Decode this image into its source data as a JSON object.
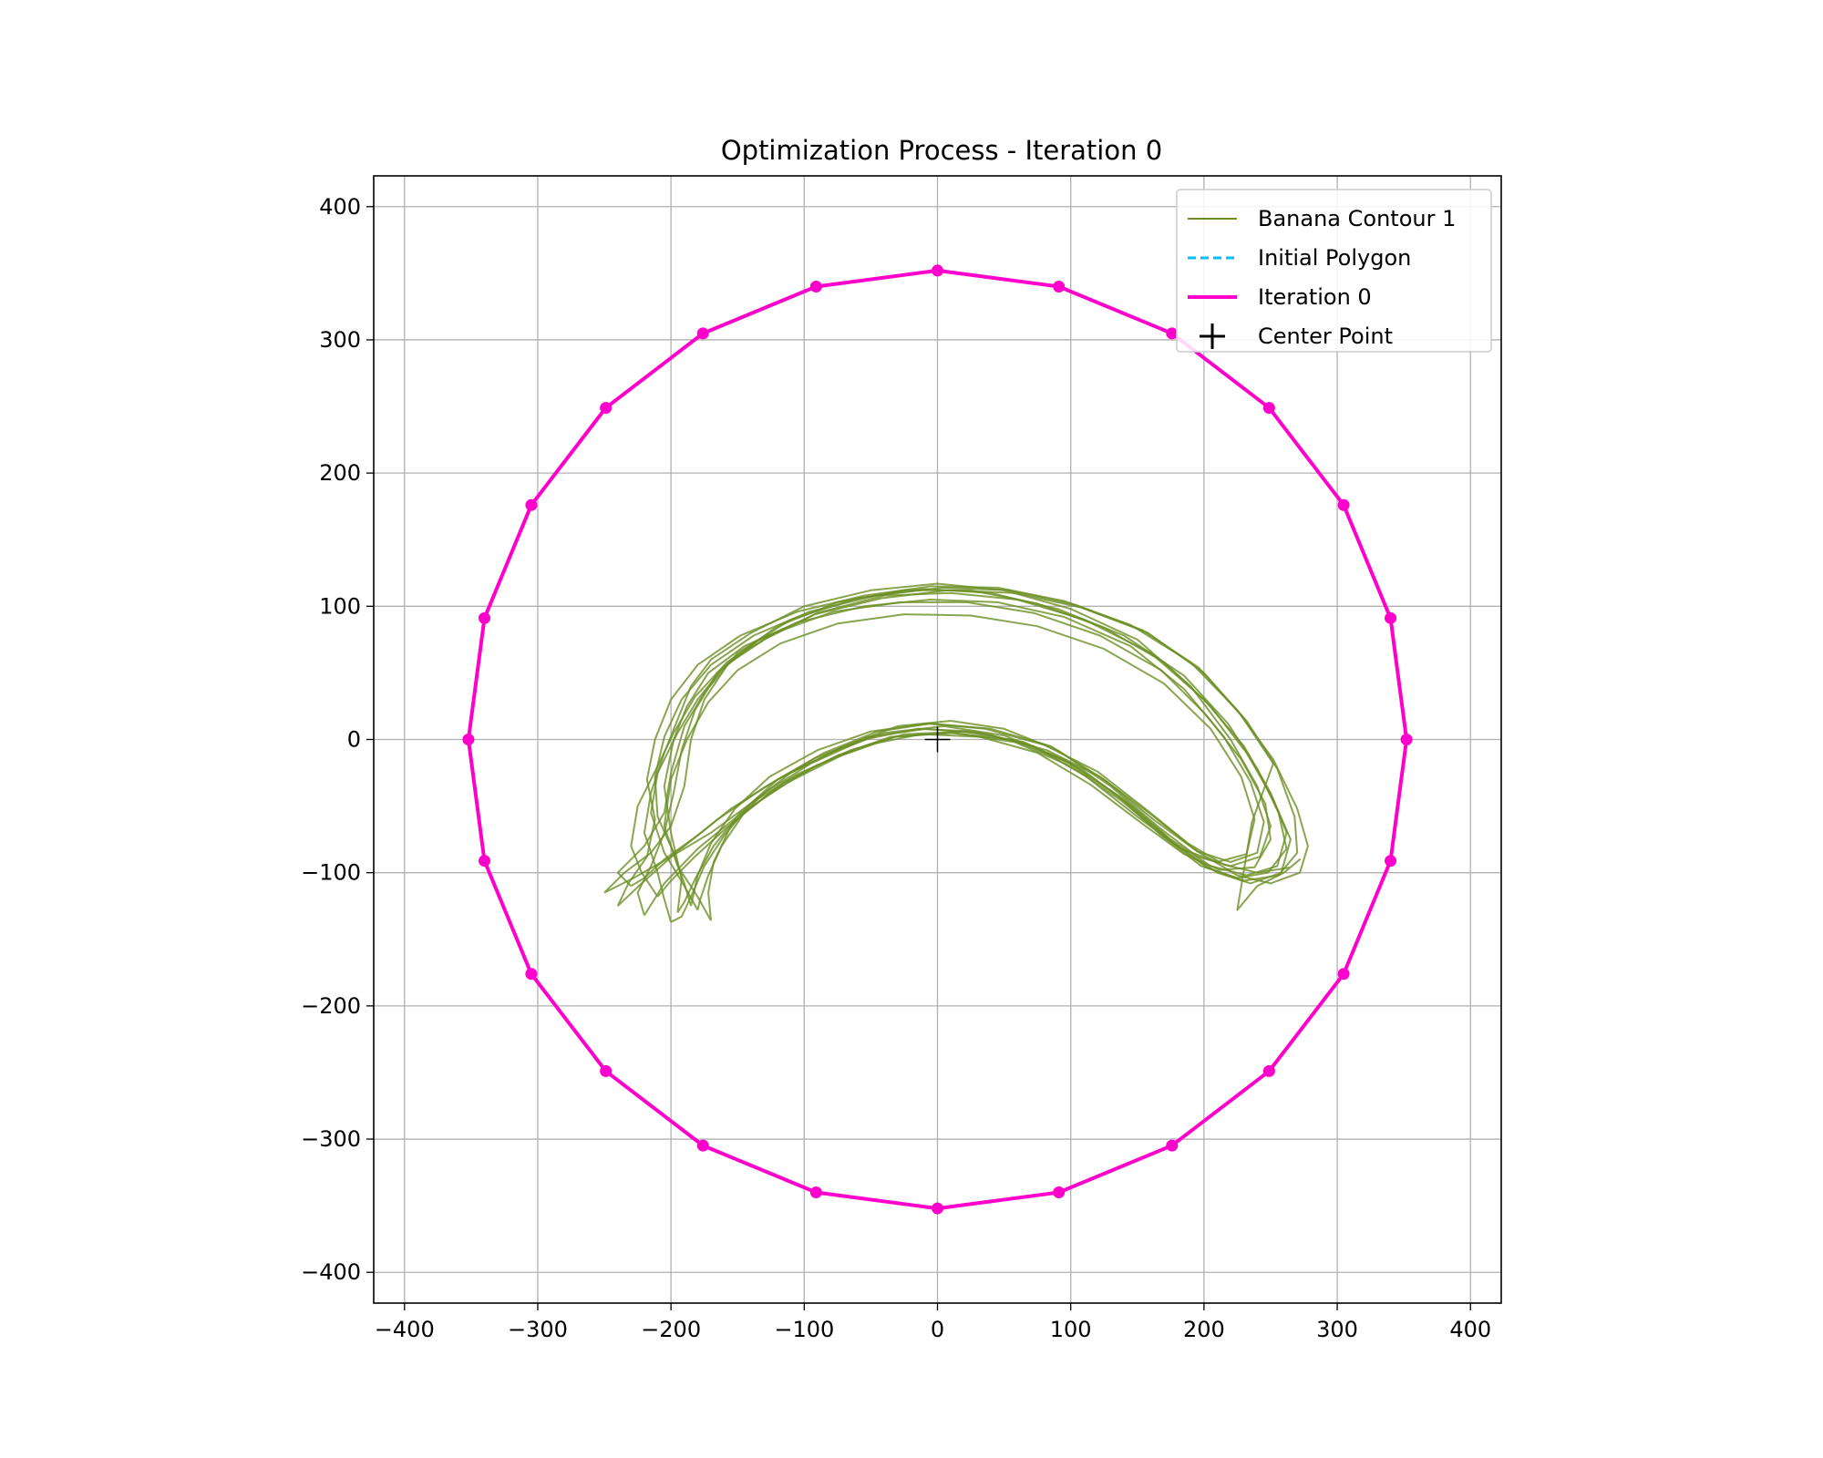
{
  "chart_data": {
    "type": "line",
    "title": "Optimization Process - Iteration 0",
    "xlabel": "",
    "ylabel": "",
    "xlim": [
      -400,
      400
    ],
    "ylim": [
      -400,
      400
    ],
    "xticks": [
      -400,
      -300,
      -200,
      -100,
      0,
      100,
      200,
      300,
      400
    ],
    "yticks": [
      -400,
      -300,
      -200,
      -100,
      0,
      100,
      200,
      300,
      400
    ],
    "x_tick_labels": [
      "−400",
      "−300",
      "−200",
      "−100",
      "0",
      "100",
      "200",
      "300",
      "400"
    ],
    "y_tick_labels": [
      "−400",
      "−300",
      "−200",
      "−100",
      "0",
      "100",
      "200",
      "300",
      "400"
    ],
    "grid": true,
    "legend_position": "top-right",
    "center_point": [
      0,
      0
    ],
    "polygon": {
      "vertex_count": 24,
      "radius": 352
    },
    "colors": {
      "banana": "#6b8e23",
      "initial": "#00bfff",
      "iteration": "#ff00cc",
      "center": "#000000",
      "grid": "#b0b0b0"
    },
    "series": [
      {
        "name": "Banana Contour 1",
        "style": "solid-thin"
      },
      {
        "name": "Initial Polygon",
        "style": "dashed"
      },
      {
        "name": "Iteration 0",
        "style": "solid-thick"
      },
      {
        "name": "Center Point",
        "style": "plus-marker"
      }
    ],
    "banana_contours": [
      [
        [
          -200,
          -137
        ],
        [
          -205,
          -120
        ],
        [
          -210,
          -100
        ],
        [
          -220,
          -70
        ],
        [
          -215,
          -40
        ],
        [
          -205,
          -10
        ],
        [
          -195,
          15
        ],
        [
          -185,
          40
        ],
        [
          -170,
          60
        ],
        [
          -140,
          80
        ],
        [
          -100,
          100
        ],
        [
          -50,
          112
        ],
        [
          0,
          117
        ],
        [
          50,
          112
        ],
        [
          100,
          98
        ],
        [
          150,
          75
        ],
        [
          190,
          40
        ],
        [
          220,
          0
        ],
        [
          240,
          -35
        ],
        [
          250,
          -65
        ],
        [
          242,
          -88
        ],
        [
          220,
          -95
        ],
        [
          195,
          -88
        ],
        [
          165,
          -65
        ],
        [
          130,
          -35
        ],
        [
          90,
          -8
        ],
        [
          50,
          8
        ],
        [
          10,
          14
        ],
        [
          -30,
          10
        ],
        [
          -70,
          -5
        ],
        [
          -110,
          -25
        ],
        [
          -140,
          -48
        ],
        [
          -160,
          -72
        ],
        [
          -175,
          -95
        ],
        [
          -185,
          -118
        ],
        [
          -192,
          -133
        ],
        [
          -200,
          -137
        ]
      ],
      [
        [
          -180,
          -128
        ],
        [
          -190,
          -110
        ],
        [
          -205,
          -85
        ],
        [
          -215,
          -55
        ],
        [
          -210,
          -25
        ],
        [
          -195,
          5
        ],
        [
          -180,
          30
        ],
        [
          -160,
          55
        ],
        [
          -130,
          75
        ],
        [
          -90,
          95
        ],
        [
          -40,
          108
        ],
        [
          10,
          110
        ],
        [
          60,
          105
        ],
        [
          110,
          90
        ],
        [
          160,
          65
        ],
        [
          200,
          30
        ],
        [
          230,
          -5
        ],
        [
          250,
          -40
        ],
        [
          262,
          -70
        ],
        [
          255,
          -95
        ],
        [
          232,
          -102
        ],
        [
          205,
          -95
        ],
        [
          175,
          -75
        ],
        [
          140,
          -45
        ],
        [
          100,
          -18
        ],
        [
          55,
          0
        ],
        [
          10,
          5
        ],
        [
          -35,
          2
        ],
        [
          -75,
          -12
        ],
        [
          -115,
          -32
        ],
        [
          -145,
          -55
        ],
        [
          -162,
          -80
        ],
        [
          -172,
          -102
        ],
        [
          -178,
          -120
        ],
        [
          -180,
          -128
        ]
      ],
      [
        [
          -230,
          -110
        ],
        [
          -240,
          -100
        ],
        [
          -220,
          -80
        ],
        [
          -205,
          -55
        ],
        [
          -200,
          -25
        ],
        [
          -190,
          10
        ],
        [
          -175,
          35
        ],
        [
          -150,
          65
        ],
        [
          -110,
          90
        ],
        [
          -60,
          106
        ],
        [
          -10,
          113
        ],
        [
          40,
          110
        ],
        [
          90,
          98
        ],
        [
          140,
          78
        ],
        [
          185,
          48
        ],
        [
          218,
          12
        ],
        [
          240,
          -22
        ],
        [
          256,
          -55
        ],
        [
          262,
          -82
        ],
        [
          248,
          -100
        ],
        [
          225,
          -104
        ],
        [
          198,
          -95
        ],
        [
          168,
          -72
        ],
        [
          135,
          -42
        ],
        [
          95,
          -15
        ],
        [
          50,
          3
        ],
        [
          5,
          10
        ],
        [
          -40,
          5
        ],
        [
          -80,
          -10
        ],
        [
          -120,
          -30
        ],
        [
          -155,
          -52
        ],
        [
          -180,
          -72
        ],
        [
          -205,
          -90
        ],
        [
          -220,
          -104
        ],
        [
          -230,
          -110
        ]
      ],
      [
        [
          -250,
          -115
        ],
        [
          -235,
          -100
        ],
        [
          -215,
          -85
        ],
        [
          -200,
          -65
        ],
        [
          -190,
          -35
        ],
        [
          -185,
          0
        ],
        [
          -175,
          30
        ],
        [
          -155,
          60
        ],
        [
          -120,
          85
        ],
        [
          -75,
          103
        ],
        [
          -25,
          112
        ],
        [
          25,
          112
        ],
        [
          75,
          102
        ],
        [
          125,
          84
        ],
        [
          170,
          58
        ],
        [
          205,
          25
        ],
        [
          232,
          -10
        ],
        [
          252,
          -45
        ],
        [
          265,
          -75
        ],
        [
          258,
          -100
        ],
        [
          235,
          -108
        ],
        [
          210,
          -100
        ],
        [
          180,
          -80
        ],
        [
          145,
          -50
        ],
        [
          108,
          -22
        ],
        [
          65,
          -2
        ],
        [
          20,
          6
        ],
        [
          -25,
          4
        ],
        [
          -65,
          -8
        ],
        [
          -105,
          -26
        ],
        [
          -140,
          -48
        ],
        [
          -170,
          -70
        ],
        [
          -200,
          -88
        ],
        [
          -228,
          -104
        ],
        [
          -250,
          -115
        ]
      ],
      [
        [
          -195,
          -130
        ],
        [
          -192,
          -105
        ],
        [
          -200,
          -70
        ],
        [
          -205,
          -35
        ],
        [
          -198,
          0
        ],
        [
          -188,
          25
        ],
        [
          -172,
          50
        ],
        [
          -145,
          70
        ],
        [
          -105,
          88
        ],
        [
          -55,
          100
        ],
        [
          -5,
          105
        ],
        [
          45,
          103
        ],
        [
          95,
          92
        ],
        [
          145,
          70
        ],
        [
          185,
          38
        ],
        [
          215,
          2
        ],
        [
          235,
          -32
        ],
        [
          245,
          -62
        ],
        [
          240,
          -85
        ],
        [
          220,
          -92
        ],
        [
          195,
          -84
        ],
        [
          162,
          -60
        ],
        [
          125,
          -30
        ],
        [
          85,
          -5
        ],
        [
          40,
          8
        ],
        [
          -5,
          12
        ],
        [
          -45,
          6
        ],
        [
          -85,
          -10
        ],
        [
          -120,
          -30
        ],
        [
          -148,
          -55
        ],
        [
          -168,
          -80
        ],
        [
          -182,
          -105
        ],
        [
          -190,
          -122
        ],
        [
          -195,
          -130
        ]
      ],
      [
        [
          -210,
          -118
        ],
        [
          -222,
          -100
        ],
        [
          -230,
          -80
        ],
        [
          -225,
          -50
        ],
        [
          -210,
          -20
        ],
        [
          -198,
          5
        ],
        [
          -182,
          32
        ],
        [
          -158,
          58
        ],
        [
          -122,
          80
        ],
        [
          -78,
          96
        ],
        [
          -28,
          103
        ],
        [
          22,
          103
        ],
        [
          72,
          95
        ],
        [
          122,
          78
        ],
        [
          168,
          52
        ],
        [
          202,
          18
        ],
        [
          228,
          -15
        ],
        [
          246,
          -48
        ],
        [
          250,
          -75
        ],
        [
          238,
          -96
        ],
        [
          212,
          -98
        ],
        [
          185,
          -86
        ],
        [
          152,
          -62
        ],
        [
          115,
          -34
        ],
        [
          75,
          -10
        ],
        [
          32,
          2
        ],
        [
          -12,
          4
        ],
        [
          -52,
          -4
        ],
        [
          -92,
          -20
        ],
        [
          -128,
          -42
        ],
        [
          -158,
          -66
        ],
        [
          -182,
          -88
        ],
        [
          -200,
          -106
        ],
        [
          -210,
          -118
        ]
      ],
      [
        [
          -170,
          -136
        ],
        [
          -180,
          -118
        ],
        [
          -195,
          -95
        ],
        [
          -205,
          -65
        ],
        [
          -200,
          -30
        ],
        [
          -188,
          0
        ],
        [
          -172,
          28
        ],
        [
          -150,
          52
        ],
        [
          -118,
          72
        ],
        [
          -75,
          87
        ],
        [
          -25,
          94
        ],
        [
          25,
          93
        ],
        [
          75,
          85
        ],
        [
          125,
          68
        ],
        [
          170,
          42
        ],
        [
          205,
          8
        ],
        [
          228,
          -28
        ],
        [
          238,
          -60
        ],
        [
          232,
          -86
        ],
        [
          210,
          -92
        ],
        [
          183,
          -82
        ],
        [
          150,
          -58
        ],
        [
          112,
          -28
        ],
        [
          72,
          -5
        ],
        [
          28,
          6
        ],
        [
          -15,
          8
        ],
        [
          -55,
          0
        ],
        [
          -95,
          -18
        ],
        [
          -130,
          -40
        ],
        [
          -155,
          -65
        ],
        [
          -168,
          -92
        ],
        [
          -172,
          -115
        ],
        [
          -170,
          -136
        ]
      ],
      [
        [
          -240,
          -125
        ],
        [
          -232,
          -108
        ],
        [
          -218,
          -88
        ],
        [
          -212,
          -60
        ],
        [
          -218,
          -30
        ],
        [
          -212,
          0
        ],
        [
          -200,
          30
        ],
        [
          -180,
          56
        ],
        [
          -148,
          78
        ],
        [
          -105,
          96
        ],
        [
          -55,
          108
        ],
        [
          -5,
          115
        ],
        [
          45,
          114
        ],
        [
          95,
          104
        ],
        [
          145,
          86
        ],
        [
          190,
          58
        ],
        [
          225,
          22
        ],
        [
          252,
          -15
        ],
        [
          270,
          -52
        ],
        [
          278,
          -80
        ],
        [
          272,
          -100
        ],
        [
          250,
          -108
        ],
        [
          225,
          -102
        ],
        [
          195,
          -84
        ],
        [
          160,
          -56
        ],
        [
          122,
          -28
        ],
        [
          82,
          -8
        ],
        [
          38,
          4
        ],
        [
          -8,
          8
        ],
        [
          -52,
          2
        ],
        [
          -92,
          -14
        ],
        [
          -130,
          -36
        ],
        [
          -165,
          -60
        ],
        [
          -195,
          -84
        ],
        [
          -222,
          -108
        ],
        [
          -240,
          -125
        ]
      ],
      [
        [
          -220,
          -132
        ],
        [
          -225,
          -115
        ],
        [
          -215,
          -95
        ],
        [
          -205,
          -70
        ],
        [
          -198,
          -40
        ],
        [
          -192,
          -8
        ],
        [
          -182,
          22
        ],
        [
          -165,
          50
        ],
        [
          -135,
          74
        ],
        [
          -92,
          94
        ],
        [
          -42,
          106
        ],
        [
          8,
          112
        ],
        [
          58,
          110
        ],
        [
          108,
          99
        ],
        [
          158,
          80
        ],
        [
          200,
          50
        ],
        [
          232,
          14
        ],
        [
          255,
          -22
        ],
        [
          268,
          -58
        ],
        [
          270,
          -85
        ],
        [
          256,
          -102
        ],
        [
          230,
          -106
        ],
        [
          202,
          -96
        ],
        [
          172,
          -74
        ],
        [
          138,
          -46
        ],
        [
          100,
          -20
        ],
        [
          58,
          -2
        ],
        [
          12,
          5
        ],
        [
          -32,
          2
        ],
        [
          -72,
          -12
        ],
        [
          -112,
          -32
        ],
        [
          -148,
          -56
        ],
        [
          -180,
          -82
        ],
        [
          -205,
          -108
        ],
        [
          -220,
          -132
        ]
      ],
      [
        [
          -185,
          -125
        ],
        [
          -190,
          -108
        ],
        [
          -198,
          -85
        ],
        [
          -210,
          -58
        ],
        [
          -212,
          -28
        ],
        [
          -205,
          2
        ],
        [
          -192,
          30
        ],
        [
          -170,
          56
        ],
        [
          -138,
          78
        ],
        [
          -96,
          96
        ],
        [
          -46,
          108
        ],
        [
          4,
          114
        ],
        [
          54,
          112
        ],
        [
          104,
          101
        ],
        [
          154,
          82
        ],
        [
          196,
          54
        ],
        [
          228,
          18
        ],
        [
          252,
          -18
        ],
        [
          236,
          -62
        ],
        [
          225,
          -128
        ],
        [
          240,
          -110
        ],
        [
          260,
          -100
        ],
        [
          272,
          -90
        ],
        [
          265,
          -96
        ],
        [
          240,
          -100
        ],
        [
          215,
          -94
        ],
        [
          188,
          -78
        ],
        [
          156,
          -52
        ],
        [
          120,
          -24
        ],
        [
          80,
          -4
        ],
        [
          36,
          8
        ],
        [
          -8,
          12
        ],
        [
          -50,
          6
        ],
        [
          -90,
          -8
        ],
        [
          -126,
          -28
        ],
        [
          -152,
          -52
        ],
        [
          -170,
          -78
        ],
        [
          -180,
          -102
        ],
        [
          -185,
          -125
        ]
      ]
    ]
  }
}
